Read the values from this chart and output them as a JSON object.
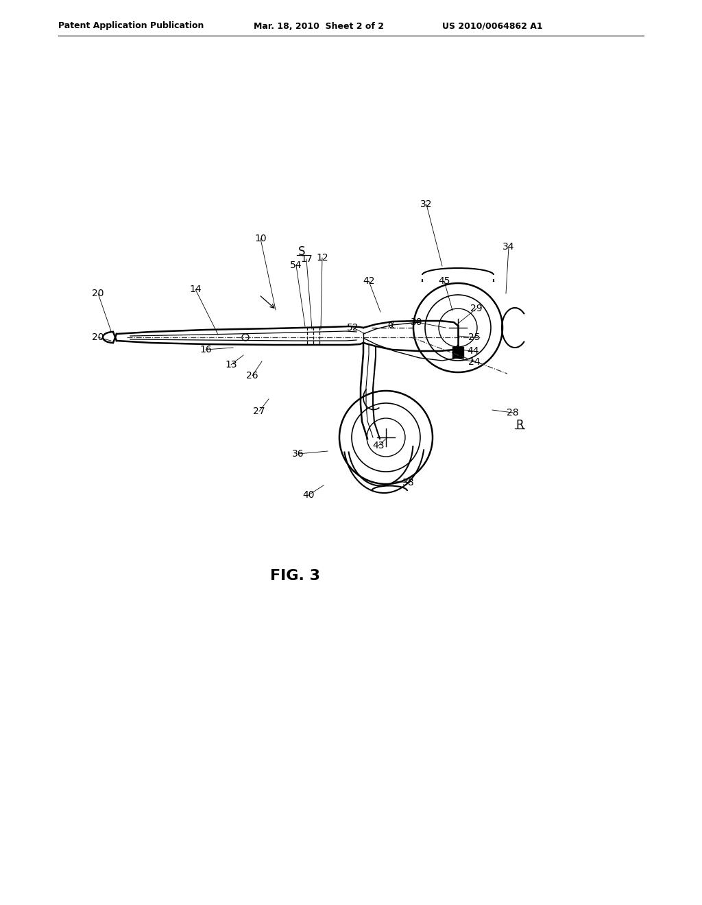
{
  "header_left": "Patent Application Publication",
  "header_center": "Mar. 18, 2010  Sheet 2 of 2",
  "header_right": "US 2010/0064862 A1",
  "bg_color": "#ffffff",
  "fig_label": "FIG. 3",
  "refs": [
    [
      "10",
      380,
      348,
      402,
      452
    ],
    [
      "12",
      470,
      376,
      468,
      480
    ],
    [
      "13",
      337,
      532,
      355,
      518
    ],
    [
      "14",
      285,
      422,
      318,
      488
    ],
    [
      "16",
      300,
      510,
      340,
      507
    ],
    [
      "17",
      447,
      378,
      455,
      480
    ],
    [
      "20",
      143,
      428,
      162,
      483
    ],
    [
      "20",
      143,
      492,
      162,
      497
    ],
    [
      "24",
      692,
      528,
      665,
      522
    ],
    [
      "25",
      692,
      492,
      668,
      490
    ],
    [
      "26",
      368,
      548,
      382,
      527
    ],
    [
      "27",
      378,
      600,
      392,
      582
    ],
    [
      "28",
      748,
      602,
      718,
      598
    ],
    [
      "29",
      695,
      450,
      668,
      472
    ],
    [
      "30",
      608,
      470,
      650,
      478
    ],
    [
      "32",
      622,
      298,
      645,
      388
    ],
    [
      "34",
      742,
      360,
      738,
      428
    ],
    [
      "36",
      435,
      662,
      478,
      658
    ],
    [
      "38",
      596,
      704,
      576,
      702
    ],
    [
      "40",
      450,
      722,
      472,
      708
    ],
    [
      "42",
      538,
      410,
      555,
      455
    ],
    [
      "43",
      552,
      650,
      565,
      638
    ],
    [
      "44",
      690,
      512,
      668,
      510
    ],
    [
      "45",
      648,
      410,
      660,
      453
    ],
    [
      "52",
      515,
      478,
      533,
      487
    ],
    [
      "54",
      432,
      387,
      445,
      476
    ]
  ],
  "S_label": [
    440,
    367
  ],
  "R_label": [
    758,
    620
  ],
  "alpha_label": [
    570,
    474
  ]
}
